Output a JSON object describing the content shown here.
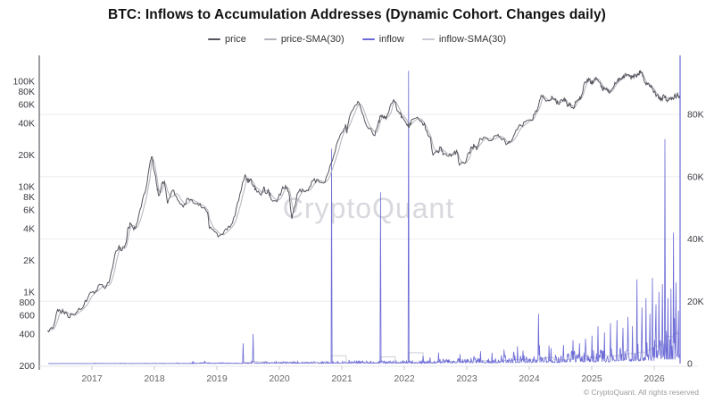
{
  "header": {
    "title": "BTC: Inflows to Accumulation Addresses (Dynamic Cohort. Changes daily)"
  },
  "watermark": "CryptoQuant",
  "footer": {
    "copyright": "© CryptoQuant. All rights reserved"
  },
  "chart_data": {
    "type": "line",
    "title": "BTC: Inflows to Accumulation Addresses (Dynamic Cohort. Changes daily)",
    "legend_position": "top",
    "grid": "faint-horizontal",
    "x_axis": {
      "range": [
        2016.16,
        2026.42
      ],
      "ticks": [
        2017,
        2018,
        2019,
        2020,
        2021,
        2022,
        2023,
        2024,
        2025,
        2026
      ],
      "tick_labels": [
        "2017",
        "2018",
        "2019",
        "2020",
        "2021",
        "2022",
        "2023",
        "2024",
        "2025",
        "2026"
      ]
    },
    "y_axis_left": {
      "scale": "log",
      "applies_to": "price",
      "ticks": [
        200,
        400,
        600,
        800,
        1000,
        2000,
        4000,
        6000,
        8000,
        10000,
        20000,
        40000,
        60000,
        80000,
        100000
      ],
      "tick_labels": [
        "200",
        "400",
        "600",
        "800",
        "1K",
        "2K",
        "4K",
        "6K",
        "8K",
        "10K",
        "20K",
        "40K",
        "60K",
        "80K",
        "100K"
      ]
    },
    "y_axis_right": {
      "scale": "linear",
      "applies_to": "inflow",
      "range": [
        0,
        98000
      ],
      "ticks": [
        0,
        20000,
        40000,
        60000,
        80000
      ],
      "tick_labels": [
        "0",
        "20K",
        "40K",
        "60K",
        "80K"
      ]
    },
    "series": [
      {
        "name": "price",
        "color": "#54545e",
        "axis": "left",
        "data": [
          [
            2016.29,
            430
          ],
          [
            2016.37,
            450
          ],
          [
            2016.45,
            680
          ],
          [
            2016.5,
            640
          ],
          [
            2016.54,
            660
          ],
          [
            2016.62,
            575
          ],
          [
            2016.71,
            610
          ],
          [
            2016.79,
            700
          ],
          [
            2016.87,
            745
          ],
          [
            2016.96,
            960
          ],
          [
            2017.04,
            970
          ],
          [
            2017.12,
            1180
          ],
          [
            2017.21,
            1080
          ],
          [
            2017.29,
            1350
          ],
          [
            2017.37,
            2300
          ],
          [
            2017.43,
            2700
          ],
          [
            2017.46,
            2480
          ],
          [
            2017.54,
            2870
          ],
          [
            2017.58,
            4100
          ],
          [
            2017.62,
            4400
          ],
          [
            2017.67,
            3900
          ],
          [
            2017.71,
            4340
          ],
          [
            2017.79,
            6450
          ],
          [
            2017.87,
            9900
          ],
          [
            2017.93,
            16800
          ],
          [
            2017.96,
            19200
          ],
          [
            2018.0,
            13900
          ],
          [
            2018.04,
            10200
          ],
          [
            2018.07,
            8200
          ],
          [
            2018.12,
            10800
          ],
          [
            2018.16,
            11200
          ],
          [
            2018.21,
            6900
          ],
          [
            2018.29,
            9240
          ],
          [
            2018.37,
            7490
          ],
          [
            2018.46,
            6400
          ],
          [
            2018.54,
            7730
          ],
          [
            2018.62,
            7030
          ],
          [
            2018.71,
            6630
          ],
          [
            2018.79,
            6300
          ],
          [
            2018.85,
            5700
          ],
          [
            2018.88,
            4020
          ],
          [
            2018.96,
            3740
          ],
          [
            2019.04,
            3430
          ],
          [
            2019.12,
            3820
          ],
          [
            2019.21,
            4100
          ],
          [
            2019.29,
            5270
          ],
          [
            2019.37,
            8560
          ],
          [
            2019.45,
            12900
          ],
          [
            2019.5,
            10800
          ],
          [
            2019.54,
            11800
          ],
          [
            2019.58,
            10100
          ],
          [
            2019.62,
            9600
          ],
          [
            2019.71,
            8300
          ],
          [
            2019.75,
            9900
          ],
          [
            2019.79,
            8600
          ],
          [
            2019.83,
            9150
          ],
          [
            2019.87,
            7550
          ],
          [
            2019.96,
            7190
          ],
          [
            2020.04,
            9350
          ],
          [
            2020.1,
            10200
          ],
          [
            2020.15,
            8900
          ],
          [
            2020.2,
            4950
          ],
          [
            2020.25,
            6440
          ],
          [
            2020.29,
            8620
          ],
          [
            2020.37,
            9450
          ],
          [
            2020.46,
            9140
          ],
          [
            2020.54,
            11350
          ],
          [
            2020.62,
            11650
          ],
          [
            2020.71,
            10780
          ],
          [
            2020.79,
            13800
          ],
          [
            2020.87,
            19700
          ],
          [
            2020.96,
            29000
          ],
          [
            2021.02,
            33100
          ],
          [
            2021.06,
            38500
          ],
          [
            2021.08,
            32000
          ],
          [
            2021.12,
            45200
          ],
          [
            2021.21,
            58800
          ],
          [
            2021.27,
            63200
          ],
          [
            2021.33,
            49000
          ],
          [
            2021.4,
            37300
          ],
          [
            2021.46,
            35600
          ],
          [
            2021.53,
            30500
          ],
          [
            2021.58,
            39500
          ],
          [
            2021.62,
            47100
          ],
          [
            2021.67,
            44500
          ],
          [
            2021.71,
            43800
          ],
          [
            2021.79,
            61300
          ],
          [
            2021.83,
            66500
          ],
          [
            2021.87,
            57000
          ],
          [
            2021.93,
            49000
          ],
          [
            2021.96,
            46200
          ],
          [
            2022.04,
            38500
          ],
          [
            2022.08,
            36800
          ],
          [
            2022.12,
            43200
          ],
          [
            2022.21,
            45500
          ],
          [
            2022.29,
            39700
          ],
          [
            2022.33,
            38500
          ],
          [
            2022.37,
            31800
          ],
          [
            2022.42,
            29000
          ],
          [
            2022.46,
            19900
          ],
          [
            2022.54,
            21300
          ],
          [
            2022.58,
            23300
          ],
          [
            2022.62,
            20000
          ],
          [
            2022.71,
            19400
          ],
          [
            2022.79,
            20500
          ],
          [
            2022.85,
            21000
          ],
          [
            2022.88,
            16000
          ],
          [
            2022.96,
            16550
          ],
          [
            2023.04,
            21100
          ],
          [
            2023.08,
            23100
          ],
          [
            2023.12,
            24800
          ],
          [
            2023.16,
            22100
          ],
          [
            2023.21,
            28500
          ],
          [
            2023.29,
            29300
          ],
          [
            2023.37,
            27200
          ],
          [
            2023.46,
            30500
          ],
          [
            2023.54,
            29200
          ],
          [
            2023.62,
            26000
          ],
          [
            2023.66,
            25800
          ],
          [
            2023.71,
            26900
          ],
          [
            2023.79,
            34600
          ],
          [
            2023.87,
            37700
          ],
          [
            2023.96,
            42300
          ],
          [
            2024.04,
            42600
          ],
          [
            2024.08,
            48000
          ],
          [
            2024.12,
            51500
          ],
          [
            2024.18,
            68500
          ],
          [
            2024.22,
            73000
          ],
          [
            2024.27,
            64500
          ],
          [
            2024.33,
            66000
          ],
          [
            2024.37,
            71000
          ],
          [
            2024.42,
            67500
          ],
          [
            2024.46,
            61000
          ],
          [
            2024.54,
            64600
          ],
          [
            2024.58,
            67000
          ],
          [
            2024.62,
            58000
          ],
          [
            2024.66,
            60500
          ],
          [
            2024.71,
            55000
          ],
          [
            2024.75,
            63300
          ],
          [
            2024.79,
            67000
          ],
          [
            2024.83,
            70200
          ],
          [
            2024.87,
            90400
          ],
          [
            2024.92,
            99000
          ],
          [
            2024.96,
            104000
          ],
          [
            2025.0,
            94000
          ],
          [
            2025.04,
            102400
          ],
          [
            2025.08,
            104800
          ],
          [
            2025.13,
            97000
          ],
          [
            2025.17,
            84300
          ],
          [
            2025.21,
            86000
          ],
          [
            2025.25,
            82500
          ],
          [
            2025.29,
            78000
          ],
          [
            2025.33,
            85000
          ],
          [
            2025.37,
            97000
          ],
          [
            2025.42,
            104600
          ],
          [
            2025.46,
            103000
          ],
          [
            2025.5,
            107100
          ],
          [
            2025.54,
            118000
          ],
          [
            2025.58,
            115500
          ],
          [
            2025.62,
            109000
          ],
          [
            2025.66,
            113000
          ],
          [
            2025.71,
            111000
          ],
          [
            2025.75,
            117000
          ],
          [
            2025.78,
            124500
          ],
          [
            2025.81,
            115000
          ],
          [
            2025.83,
            107000
          ],
          [
            2025.87,
            91400
          ],
          [
            2025.9,
            96000
          ],
          [
            2025.93,
            90000
          ],
          [
            2025.96,
            87000
          ],
          [
            2026.0,
            80000
          ],
          [
            2026.04,
            74000
          ],
          [
            2026.08,
            70000
          ],
          [
            2026.12,
            68000
          ],
          [
            2026.16,
            72000
          ],
          [
            2026.2,
            66000
          ],
          [
            2026.24,
            69500
          ],
          [
            2026.28,
            67000
          ],
          [
            2026.32,
            71500
          ],
          [
            2026.36,
            73500
          ],
          [
            2026.41,
            72500
          ]
        ]
      },
      {
        "name": "price-SMA(30)",
        "color": "#b2b2ba",
        "axis": "left",
        "derived_from": "30-period moving average of price"
      },
      {
        "name": "inflow",
        "color": "#6b6ad6",
        "axis": "right",
        "major_spikes": [
          [
            2019.42,
            6500
          ],
          [
            2019.58,
            9500
          ],
          [
            2020.84,
            69000
          ],
          [
            2021.62,
            55000
          ],
          [
            2022.07,
            94000
          ],
          [
            2022.3,
            2500
          ],
          [
            2022.55,
            3500
          ],
          [
            2023.22,
            4000
          ],
          [
            2023.4,
            3500
          ],
          [
            2023.6,
            4500
          ],
          [
            2023.75,
            3800
          ],
          [
            2023.9,
            4200
          ],
          [
            2024.15,
            16000
          ],
          [
            2024.35,
            5000
          ],
          [
            2024.55,
            6000
          ],
          [
            2024.7,
            7500
          ],
          [
            2024.8,
            6500
          ],
          [
            2024.9,
            8000
          ],
          [
            2025.0,
            9000
          ],
          [
            2025.1,
            12000
          ],
          [
            2025.2,
            10000
          ],
          [
            2025.3,
            13000
          ],
          [
            2025.4,
            14000
          ],
          [
            2025.5,
            11500
          ],
          [
            2025.58,
            15000
          ],
          [
            2025.65,
            12000
          ],
          [
            2025.72,
            27000
          ],
          [
            2025.8,
            18000
          ],
          [
            2025.87,
            21000
          ],
          [
            2025.93,
            16000
          ],
          [
            2025.97,
            27500
          ],
          [
            2026.03,
            19000
          ],
          [
            2026.08,
            23000
          ],
          [
            2026.13,
            25500
          ],
          [
            2026.17,
            72000
          ],
          [
            2026.22,
            21000
          ],
          [
            2026.27,
            24000
          ],
          [
            2026.31,
            42000
          ],
          [
            2026.35,
            26000
          ],
          [
            2026.39,
            17000
          ]
        ],
        "baseline_envelope": [
          [
            2016.3,
            2017.0,
            60
          ],
          [
            2017.0,
            2018.6,
            120
          ],
          [
            2018.6,
            2019.5,
            350
          ],
          [
            2019.5,
            2021.0,
            700
          ],
          [
            2021.0,
            2022.5,
            1000
          ],
          [
            2022.5,
            2023.5,
            1800
          ],
          [
            2023.5,
            2024.5,
            2800
          ],
          [
            2024.5,
            2025.3,
            4500
          ],
          [
            2025.3,
            2026.0,
            7000
          ],
          [
            2026.0,
            2026.42,
            11000
          ]
        ]
      },
      {
        "name": "inflow-SMA(30)",
        "color": "#c9c9d6",
        "axis": "right",
        "derived_from": "30-period moving average of inflow"
      }
    ]
  }
}
